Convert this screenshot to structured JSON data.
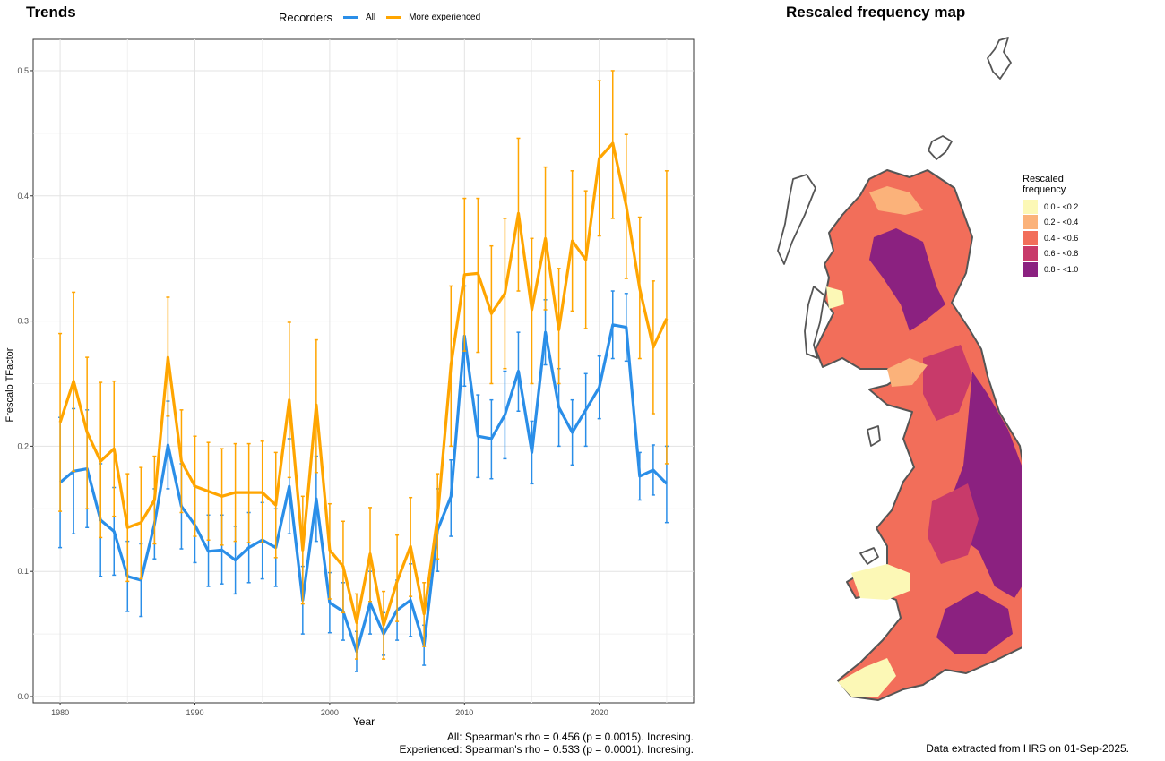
{
  "panels": {
    "trends_title": "Trends",
    "map_title": "Rescaled frequency map"
  },
  "legend": {
    "title": "Recorders",
    "items": [
      {
        "label": "All",
        "color": "#2a8ee8"
      },
      {
        "label": "More experienced",
        "color": "#ffa500"
      }
    ]
  },
  "chart_data": {
    "type": "line",
    "xlabel": "Year",
    "ylabel": "Frescalo TFactor",
    "xlim": [
      1978,
      2027
    ],
    "ylim": [
      -0.005,
      0.525
    ],
    "xticks": [
      "1980",
      "1990",
      "2000",
      "2010",
      "2020"
    ],
    "yticks": [
      "0.0",
      "0.1",
      "0.2",
      "0.3",
      "0.4",
      "0.5"
    ],
    "grid": true,
    "legend_position": "top",
    "x": [
      1980,
      1981,
      1982,
      1983,
      1984,
      1985,
      1986,
      1987,
      1988,
      1989,
      1990,
      1991,
      1992,
      1993,
      1994,
      1995,
      1996,
      1997,
      1998,
      1999,
      2000,
      2001,
      2002,
      2003,
      2004,
      2005,
      2006,
      2007,
      2008,
      2009,
      2010,
      2011,
      2012,
      2013,
      2014,
      2015,
      2016,
      2017,
      2018,
      2019,
      2020,
      2021,
      2022,
      2023,
      2024,
      2025
    ],
    "series": [
      {
        "name": "All",
        "color": "#2a8ee8",
        "values": [
          0.171,
          0.18,
          0.182,
          0.141,
          0.132,
          0.096,
          0.093,
          0.138,
          0.201,
          0.152,
          0.137,
          0.116,
          0.117,
          0.109,
          0.119,
          0.125,
          0.119,
          0.168,
          0.077,
          0.158,
          0.075,
          0.068,
          0.036,
          0.075,
          0.05,
          0.069,
          0.077,
          0.041,
          0.133,
          0.16,
          0.288,
          0.208,
          0.206,
          0.225,
          0.26,
          0.195,
          0.291,
          0.231,
          0.211,
          0.229,
          0.247,
          0.297,
          0.295,
          0.176,
          0.181,
          0.17
        ],
        "lower": [
          0.119,
          0.13,
          0.135,
          0.096,
          0.097,
          0.068,
          0.064,
          0.11,
          0.166,
          0.118,
          0.107,
          0.088,
          0.09,
          0.082,
          0.091,
          0.094,
          0.088,
          0.13,
          0.05,
          0.124,
          0.051,
          0.045,
          0.02,
          0.05,
          0.033,
          0.045,
          0.048,
          0.025,
          0.1,
          0.128,
          0.248,
          0.175,
          0.174,
          0.19,
          0.228,
          0.17,
          0.265,
          0.2,
          0.185,
          0.2,
          0.222,
          0.27,
          0.268,
          0.157,
          0.161,
          0.139
        ],
        "upper": [
          0.223,
          0.23,
          0.229,
          0.186,
          0.167,
          0.124,
          0.122,
          0.166,
          0.236,
          0.186,
          0.168,
          0.145,
          0.145,
          0.136,
          0.147,
          0.155,
          0.15,
          0.206,
          0.104,
          0.192,
          0.099,
          0.091,
          0.052,
          0.1,
          0.067,
          0.093,
          0.106,
          0.057,
          0.166,
          0.189,
          0.328,
          0.241,
          0.237,
          0.26,
          0.291,
          0.22,
          0.317,
          0.262,
          0.237,
          0.258,
          0.272,
          0.324,
          0.322,
          0.195,
          0.201,
          0.2
        ]
      },
      {
        "name": "More experienced",
        "color": "#ffa500",
        "values": [
          0.219,
          0.252,
          0.211,
          0.188,
          0.198,
          0.135,
          0.139,
          0.157,
          0.271,
          0.188,
          0.168,
          0.164,
          0.16,
          0.163,
          0.163,
          0.163,
          0.153,
          0.237,
          0.117,
          0.233,
          0.117,
          0.104,
          0.059,
          0.114,
          0.057,
          0.092,
          0.12,
          0.066,
          0.143,
          0.265,
          0.337,
          0.338,
          0.306,
          0.322,
          0.386,
          0.309,
          0.366,
          0.293,
          0.364,
          0.349,
          0.43,
          0.442,
          0.392,
          0.326,
          0.279,
          0.302
        ],
        "lower": [
          0.148,
          0.18,
          0.15,
          0.127,
          0.144,
          0.092,
          0.094,
          0.122,
          0.224,
          0.147,
          0.128,
          0.125,
          0.121,
          0.124,
          0.123,
          0.123,
          0.111,
          0.175,
          0.074,
          0.179,
          0.078,
          0.067,
          0.03,
          0.076,
          0.03,
          0.06,
          0.08,
          0.04,
          0.11,
          0.2,
          0.276,
          0.275,
          0.25,
          0.262,
          0.324,
          0.25,
          0.309,
          0.25,
          0.308,
          0.294,
          0.368,
          0.382,
          0.334,
          0.27,
          0.226,
          0.186
        ],
        "upper": [
          0.29,
          0.323,
          0.271,
          0.251,
          0.252,
          0.178,
          0.183,
          0.192,
          0.319,
          0.229,
          0.208,
          0.203,
          0.198,
          0.202,
          0.202,
          0.204,
          0.195,
          0.299,
          0.16,
          0.285,
          0.154,
          0.14,
          0.082,
          0.151,
          0.084,
          0.129,
          0.159,
          0.091,
          0.178,
          0.328,
          0.398,
          0.398,
          0.36,
          0.382,
          0.446,
          0.366,
          0.423,
          0.342,
          0.42,
          0.404,
          0.492,
          0.5,
          0.449,
          0.383,
          0.332,
          0.42
        ]
      }
    ]
  },
  "caption": {
    "line1": "All: Spearman's rho = 0.456 (p = 0.0015). Incresing.",
    "line2": "Experienced: Spearman's rho = 0.533 (p = 0.0001). Incresing."
  },
  "map_legend": {
    "title_line1": "Rescaled",
    "title_line2": "frequency",
    "items": [
      {
        "label": "0.0 - <0.2",
        "color": "#fcf8b6"
      },
      {
        "label": "0.2 - <0.4",
        "color": "#fbb27a"
      },
      {
        "label": "0.4 - <0.6",
        "color": "#f26e5a"
      },
      {
        "label": "0.6 - <0.8",
        "color": "#c83a6a"
      },
      {
        "label": "0.8 - <1.0",
        "color": "#8b2180"
      }
    ]
  },
  "source_note": "Data extracted from HRS on 01-Sep-2025."
}
